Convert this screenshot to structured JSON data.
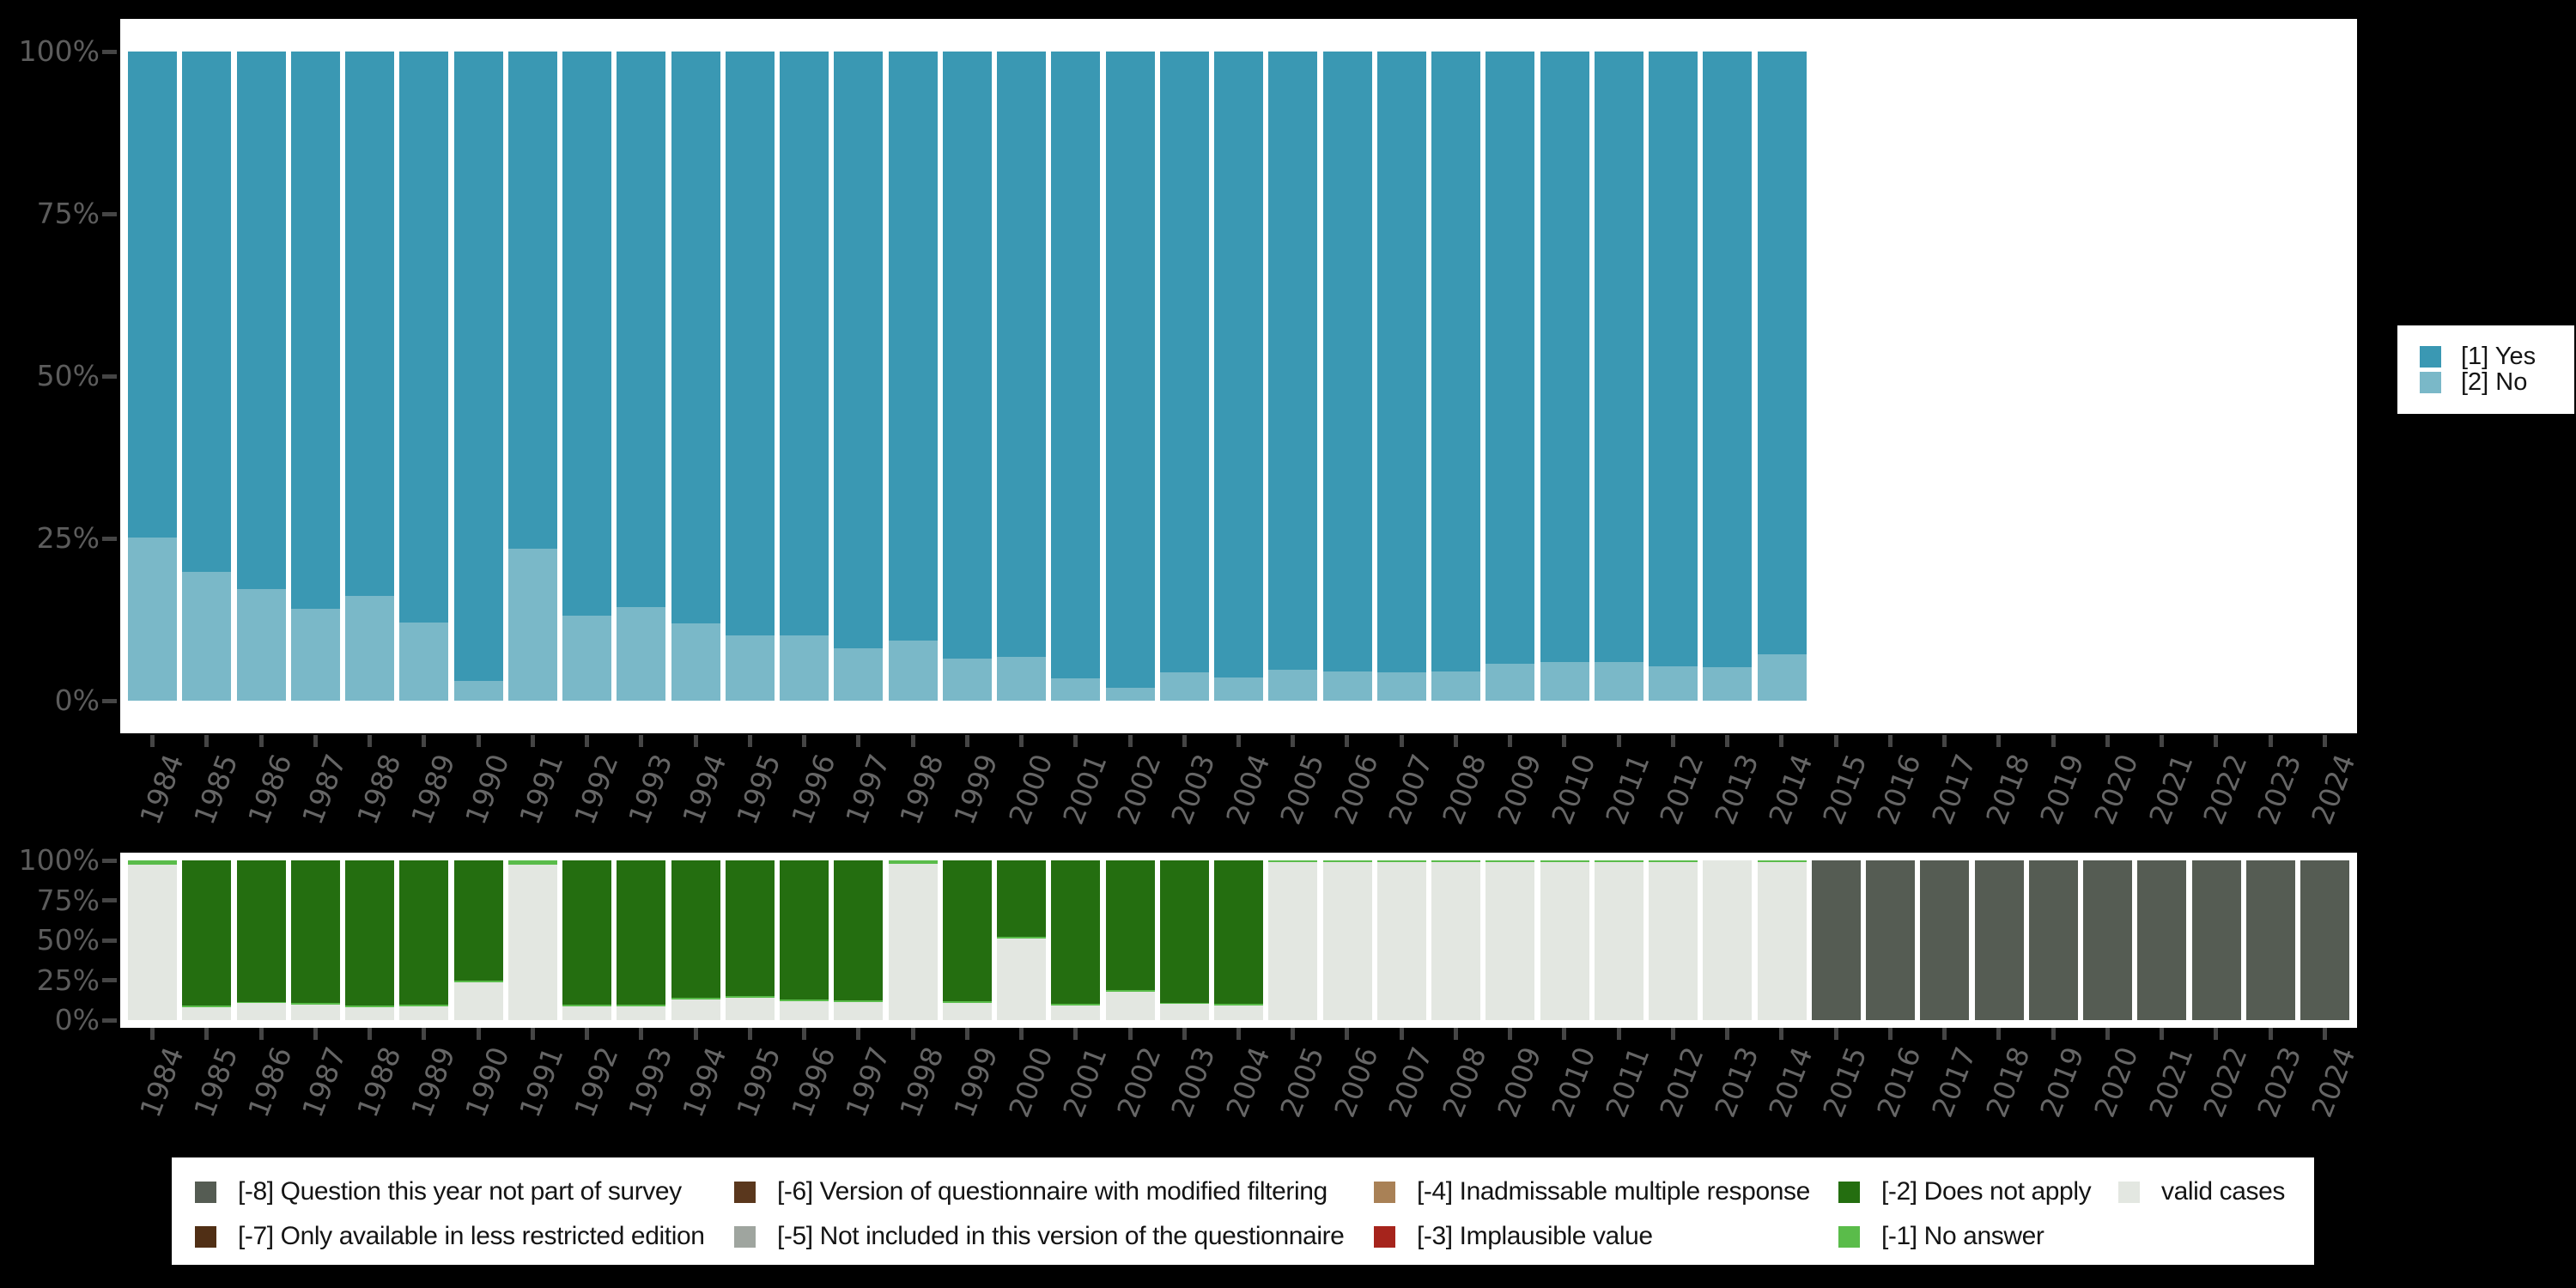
{
  "colors": {
    "background": "#000000",
    "panel": "#ffffff",
    "axis_tick": "#454545",
    "axis_label": "#5c5c5c",
    "year_label": "#666666",
    "legend_text": "#141414"
  },
  "chart_data": [
    {
      "type": "bar",
      "stacked": true,
      "id": "responses",
      "title": "",
      "xlabel": "",
      "ylabel": "",
      "ylim": [
        0,
        100
      ],
      "grid": false,
      "legend_position": "right",
      "yticks": [
        "0%",
        "25%",
        "50%",
        "75%",
        "100%"
      ],
      "categories": [
        "1984",
        "1985",
        "1986",
        "1987",
        "1988",
        "1989",
        "1990",
        "1991",
        "1992",
        "1993",
        "1994",
        "1995",
        "1996",
        "1997",
        "1998",
        "1999",
        "2000",
        "2001",
        "2002",
        "2003",
        "2004",
        "2005",
        "2006",
        "2007",
        "2008",
        "2009",
        "2010",
        "2011",
        "2012",
        "2013",
        "2014",
        "2015",
        "2016",
        "2017",
        "2018",
        "2019",
        "2020",
        "2021",
        "2022",
        "2023",
        "2024"
      ],
      "series": [
        {
          "name": "[2] No",
          "color": "#7ab8c8",
          "values": [
            25.2,
            19.8,
            17.2,
            14.2,
            16.2,
            12,
            3.1,
            23.4,
            13.1,
            14.4,
            11.9,
            10.1,
            10,
            8.1,
            9.2,
            6.5,
            6.7,
            3.5,
            2,
            4.4,
            3.6,
            4.7,
            4.5,
            4.4,
            4.5,
            5.7,
            6,
            5.9,
            5.3,
            5.1,
            7.2,
            null,
            null,
            null,
            null,
            null,
            null,
            null,
            null,
            null,
            null
          ]
        },
        {
          "name": "[1] Yes",
          "color": "#3a98b3",
          "values": [
            74.8,
            80.2,
            82.8,
            85.8,
            83.8,
            88,
            96.9,
            76.6,
            86.9,
            85.6,
            88.1,
            89.9,
            90,
            91.9,
            90.8,
            93.5,
            93.3,
            96.5,
            98,
            95.6,
            96.4,
            95.3,
            95.5,
            95.6,
            95.5,
            94.3,
            94,
            94.1,
            94.7,
            94.9,
            92.8,
            null,
            null,
            null,
            null,
            null,
            null,
            null,
            null,
            null,
            null
          ]
        }
      ],
      "stack_order": "bottom_to_top"
    },
    {
      "type": "bar",
      "stacked": true,
      "id": "missing-values",
      "title": "",
      "xlabel": "",
      "ylabel": "",
      "ylim": [
        0,
        100
      ],
      "grid": false,
      "legend_position": "bottom",
      "yticks": [
        "0%",
        "25%",
        "50%",
        "75%",
        "100%"
      ],
      "categories": [
        "1984",
        "1985",
        "1986",
        "1987",
        "1988",
        "1989",
        "1990",
        "1991",
        "1992",
        "1993",
        "1994",
        "1995",
        "1996",
        "1997",
        "1998",
        "1999",
        "2000",
        "2001",
        "2002",
        "2003",
        "2004",
        "2005",
        "2006",
        "2007",
        "2008",
        "2009",
        "2010",
        "2011",
        "2012",
        "2013",
        "2014",
        "2015",
        "2016",
        "2017",
        "2018",
        "2019",
        "2020",
        "2021",
        "2022",
        "2023",
        "2024"
      ],
      "series": [
        {
          "name": "valid cases",
          "color": "#e3e7e1",
          "values": [
            97.5,
            8,
            10.5,
            9.5,
            8,
            8.5,
            23.5,
            97.5,
            8.5,
            8.5,
            13,
            14,
            12,
            11.5,
            98,
            11,
            51,
            9,
            18,
            10,
            9,
            99,
            99,
            99,
            99,
            99,
            99,
            99,
            99,
            100,
            99,
            0,
            0,
            0,
            0,
            0,
            0,
            0,
            0,
            0,
            0
          ]
        },
        {
          "name": "[-1] No answer",
          "color": "#5abc4a",
          "values": [
            2.5,
            1,
            1,
            1,
            1,
            1,
            1,
            2.5,
            1,
            1,
            1,
            1,
            1,
            1,
            2,
            1,
            1,
            1,
            1,
            1,
            1,
            1,
            1,
            1,
            1,
            1,
            1,
            1,
            1,
            0,
            1,
            0,
            0,
            0,
            0,
            0,
            0,
            0,
            0,
            0,
            0
          ]
        },
        {
          "name": "[-2] Does not apply",
          "color": "#246e10",
          "values": [
            0,
            91,
            88.5,
            89.5,
            91,
            90.5,
            75.5,
            0,
            90.5,
            90.5,
            86,
            85,
            87,
            87.5,
            0,
            88,
            48,
            90,
            81,
            89,
            90,
            0,
            0,
            0,
            0,
            0,
            0,
            0,
            0,
            0,
            0,
            0,
            0,
            0,
            0,
            0,
            0,
            0,
            0,
            0,
            0
          ]
        },
        {
          "name": "[-8] Question this year not part of survey",
          "color": "#555c53",
          "values": [
            0,
            0,
            0,
            0,
            0,
            0,
            0,
            0,
            0,
            0,
            0,
            0,
            0,
            0,
            0,
            0,
            0,
            0,
            0,
            0,
            0,
            0,
            0,
            0,
            0,
            0,
            0,
            0,
            0,
            0,
            0,
            100,
            100,
            100,
            100,
            100,
            100,
            100,
            100,
            100,
            100
          ]
        }
      ],
      "stack_order": "bottom_to_top"
    }
  ],
  "legend_right": {
    "items": [
      {
        "label": "[1] Yes",
        "color": "#3a98b3"
      },
      {
        "label": "[2] No",
        "color": "#7ab8c8"
      }
    ]
  },
  "legend_bottom": {
    "items": [
      {
        "label": "[-8] Question this year not part of survey",
        "color": "#555c53",
        "row": 0,
        "col": 0
      },
      {
        "label": "[-7] Only available in less restricted edition",
        "color": "#502f15",
        "row": 1,
        "col": 0
      },
      {
        "label": "[-6] Version of questionnaire with modified filtering",
        "color": "#5a371d",
        "row": 0,
        "col": 1
      },
      {
        "label": "[-5] Not included in this version of the questionnaire",
        "color": "#9fa59f",
        "row": 1,
        "col": 1
      },
      {
        "label": "[-4] Inadmissable multiple response",
        "color": "#a98156",
        "row": 0,
        "col": 2
      },
      {
        "label": "[-3] Implausible value",
        "color": "#a6241c",
        "row": 1,
        "col": 2
      },
      {
        "label": "[-2] Does not apply",
        "color": "#246e10",
        "row": 0,
        "col": 3
      },
      {
        "label": "[-1] No answer",
        "color": "#5abc4a",
        "row": 1,
        "col": 3
      },
      {
        "label": "valid cases",
        "color": "#e3e7e1",
        "row": 0,
        "col": 4
      }
    ]
  }
}
